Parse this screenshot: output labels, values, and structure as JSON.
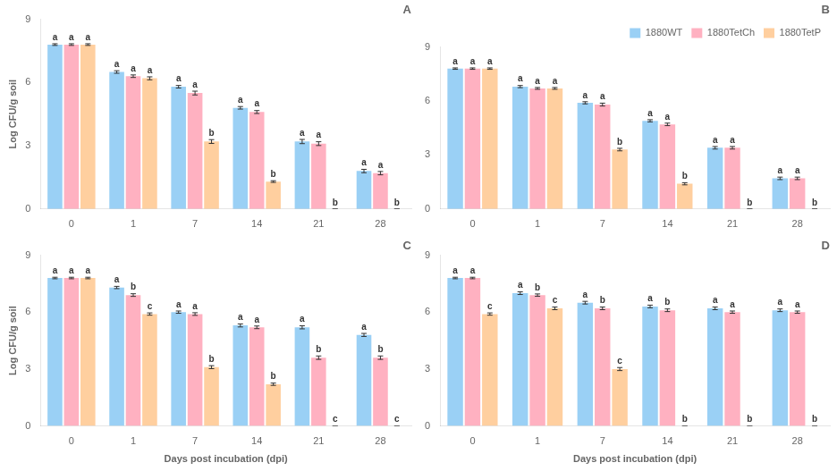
{
  "chart_data": [
    {
      "type": "bar",
      "title": "A",
      "categories": [
        "0",
        "1",
        "7",
        "14",
        "21",
        "28"
      ],
      "series": [
        {
          "name": "1880WT",
          "values": [
            7.8,
            6.5,
            5.8,
            4.8,
            3.2,
            1.8
          ],
          "errors": [
            0.04,
            0.06,
            0.06,
            0.06,
            0.1,
            0.08
          ],
          "letters": [
            "a",
            "a",
            "a",
            "a",
            "a",
            "a"
          ]
        },
        {
          "name": "1880TetCh",
          "values": [
            7.8,
            6.3,
            5.5,
            4.6,
            3.1,
            1.7
          ],
          "errors": [
            0.04,
            0.06,
            0.09,
            0.07,
            0.09,
            0.08
          ],
          "letters": [
            "a",
            "a",
            "a",
            "a",
            "a",
            "a"
          ]
        },
        {
          "name": "1880TetP",
          "values": [
            7.8,
            6.2,
            3.2,
            1.3,
            0.0,
            0.0
          ],
          "errors": [
            0.04,
            0.07,
            0.09,
            0.04,
            0.0,
            0.0
          ],
          "letters": [
            "a",
            "a",
            "b",
            "b",
            "b",
            "b"
          ]
        }
      ],
      "ylabel": "Log CFU/g soil",
      "ylim": [
        0,
        9
      ],
      "yticks": [
        0,
        3,
        6,
        9
      ],
      "grid": false,
      "legend": false
    },
    {
      "type": "bar",
      "title": "B",
      "categories": [
        "0",
        "1",
        "7",
        "14",
        "21",
        "28"
      ],
      "series": [
        {
          "name": "1880WT",
          "values": [
            7.8,
            6.8,
            5.9,
            4.9,
            3.4,
            1.7
          ],
          "errors": [
            0.04,
            0.06,
            0.06,
            0.06,
            0.07,
            0.07
          ],
          "letters": [
            "a",
            "a",
            "a",
            "a",
            "a",
            "a"
          ]
        },
        {
          "name": "1880TetCh",
          "values": [
            7.8,
            6.7,
            5.8,
            4.7,
            3.4,
            1.7
          ],
          "errors": [
            0.04,
            0.05,
            0.08,
            0.07,
            0.07,
            0.07
          ],
          "letters": [
            "a",
            "a",
            "a",
            "a",
            "a",
            "a"
          ]
        },
        {
          "name": "1880TetP",
          "values": [
            7.8,
            6.7,
            3.3,
            1.4,
            0.0,
            0.0
          ],
          "errors": [
            0.04,
            0.05,
            0.07,
            0.06,
            0.0,
            0.0
          ],
          "letters": [
            "a",
            "a",
            "b",
            "b",
            "b",
            "b"
          ]
        }
      ],
      "ylim": [
        0,
        9
      ],
      "yticks": [
        0,
        3,
        6,
        9
      ],
      "grid": false,
      "legend": "upper right"
    },
    {
      "type": "bar",
      "title": "C",
      "categories": [
        "0",
        "1",
        "7",
        "14",
        "21",
        "28"
      ],
      "series": [
        {
          "name": "1880WT",
          "values": [
            7.8,
            7.3,
            6.0,
            5.3,
            5.2,
            4.8
          ],
          "errors": [
            0.04,
            0.06,
            0.06,
            0.08,
            0.08,
            0.08
          ],
          "letters": [
            "a",
            "a",
            "a",
            "a",
            "a",
            "a"
          ]
        },
        {
          "name": "1880TetCh",
          "values": [
            7.8,
            6.9,
            5.9,
            5.2,
            3.6,
            3.6
          ],
          "errors": [
            0.04,
            0.07,
            0.07,
            0.07,
            0.09,
            0.09
          ],
          "letters": [
            "a",
            "b",
            "a",
            "a",
            "b",
            "b"
          ]
        },
        {
          "name": "1880TetP",
          "values": [
            7.8,
            5.9,
            3.1,
            2.2,
            0.0,
            0.0
          ],
          "errors": [
            0.04,
            0.06,
            0.08,
            0.06,
            0.0,
            0.0
          ],
          "letters": [
            "a",
            "c",
            "b",
            "b",
            "c",
            "c"
          ]
        }
      ],
      "xlabel": "Days post incubation (dpi)",
      "ylabel": "Log CFU/g soil",
      "ylim": [
        0,
        9
      ],
      "yticks": [
        0,
        3,
        6,
        9
      ],
      "grid": false,
      "legend": false
    },
    {
      "type": "bar",
      "title": "D",
      "categories": [
        "0",
        "1",
        "7",
        "14",
        "21",
        "28"
      ],
      "series": [
        {
          "name": "1880WT",
          "values": [
            7.8,
            7.0,
            6.5,
            6.3,
            6.2,
            6.1
          ],
          "errors": [
            0.04,
            0.07,
            0.07,
            0.07,
            0.07,
            0.07
          ],
          "letters": [
            "a",
            "a",
            "a",
            "a",
            "a",
            "a"
          ]
        },
        {
          "name": "1880TetCh",
          "values": [
            7.8,
            6.9,
            6.2,
            6.1,
            6.0,
            6.0
          ],
          "errors": [
            0.04,
            0.06,
            0.07,
            0.07,
            0.06,
            0.06
          ],
          "letters": [
            "a",
            "b",
            "b",
            "b",
            "a",
            "a"
          ]
        },
        {
          "name": "1880TetP",
          "values": [
            5.9,
            6.2,
            3.0,
            0.0,
            0.0,
            0.0
          ],
          "errors": [
            0.06,
            0.07,
            0.08,
            0.0,
            0.0,
            0.0
          ],
          "letters": [
            "c",
            "c",
            "c",
            "b",
            "b",
            "b"
          ]
        }
      ],
      "xlabel": "Days post incubation (dpi)",
      "ylim": [
        0,
        9
      ],
      "yticks": [
        0,
        3,
        6,
        9
      ],
      "grid": false,
      "legend": false
    }
  ]
}
